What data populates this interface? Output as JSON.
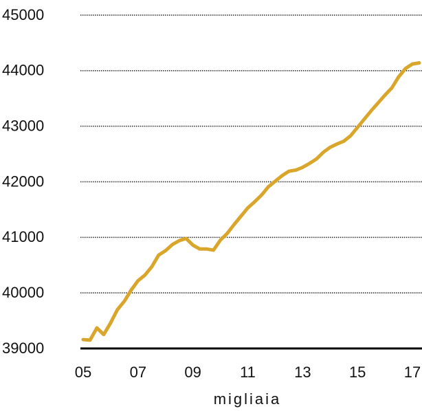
{
  "chart_data": {
    "type": "line",
    "x_label": "migliaia",
    "x": [
      5,
      5.25,
      5.5,
      5.75,
      6,
      6.25,
      6.5,
      6.75,
      7,
      7.25,
      7.5,
      7.75,
      8,
      8.25,
      8.5,
      8.75,
      9,
      9.25,
      9.5,
      9.75,
      10,
      10.25,
      10.5,
      10.75,
      11,
      11.25,
      11.5,
      11.75,
      12,
      12.25,
      12.5,
      12.75,
      13,
      13.25,
      13.5,
      13.75,
      14,
      14.25,
      14.5,
      14.75,
      15,
      15.25,
      15.5,
      15.75,
      16,
      16.25,
      16.5,
      16.75,
      17,
      17.25
    ],
    "series": [
      {
        "color": "#d9a62b",
        "values": [
          39160,
          39150,
          39370,
          39250,
          39460,
          39700,
          39850,
          40050,
          40220,
          40320,
          40470,
          40680,
          40760,
          40870,
          40940,
          40980,
          40860,
          40790,
          40790,
          40770,
          40950,
          41070,
          41230,
          41380,
          41530,
          41640,
          41760,
          41910,
          42010,
          42110,
          42190,
          42210,
          42260,
          42330,
          42410,
          42530,
          42620,
          42680,
          42730,
          42830,
          42980,
          43130,
          43280,
          43420,
          43560,
          43690,
          43890,
          44040,
          44120,
          44140
        ]
      }
    ],
    "xlim": [
      4.9,
      17.35
    ],
    "ylim": [
      39000,
      45000
    ],
    "xticks": [
      {
        "value": 5,
        "label": "05"
      },
      {
        "value": 7,
        "label": "07"
      },
      {
        "value": 9,
        "label": "09"
      },
      {
        "value": 11,
        "label": "11"
      },
      {
        "value": 13,
        "label": "13"
      },
      {
        "value": 15,
        "label": "15"
      },
      {
        "value": 17,
        "label": "17"
      }
    ],
    "yticks": [
      39000,
      40000,
      41000,
      42000,
      43000,
      44000,
      45000
    ],
    "grid": true
  }
}
